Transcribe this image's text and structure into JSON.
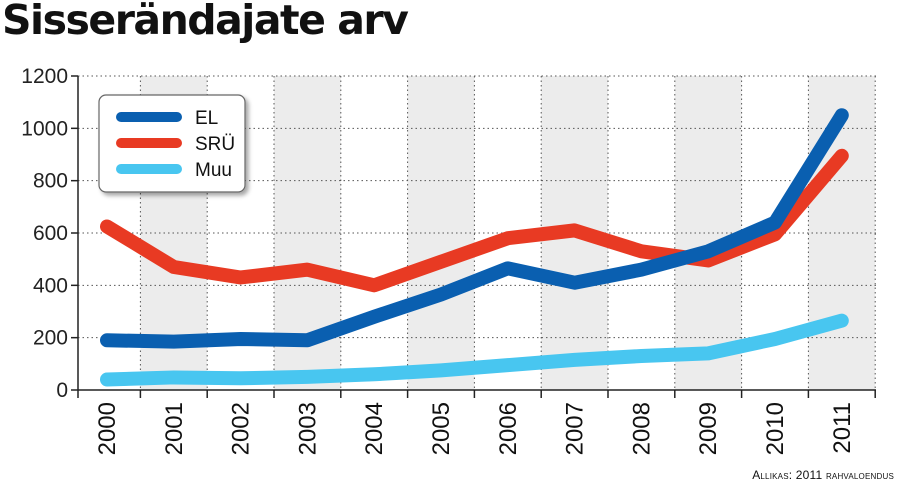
{
  "chart_data": {
    "type": "line",
    "title": "Sisserändajate arv",
    "xlabel": "",
    "ylabel": "",
    "categories": [
      "2000",
      "2001",
      "2002",
      "2003",
      "2004",
      "2005",
      "2006",
      "2007",
      "2008",
      "2009",
      "2010",
      "2011"
    ],
    "ylim": [
      0,
      1200
    ],
    "yticks": [
      0,
      200,
      400,
      600,
      800,
      1000,
      1200
    ],
    "series": [
      {
        "name": "EL",
        "color": "#0a5fb0",
        "values": [
          190,
          185,
          195,
          190,
          280,
          365,
          465,
          410,
          460,
          530,
          640,
          1050
        ]
      },
      {
        "name": "SRÜ",
        "color": "#e83a23",
        "values": [
          625,
          470,
          430,
          460,
          400,
          490,
          580,
          610,
          530,
          495,
          595,
          895
        ]
      },
      {
        "name": "Muu",
        "color": "#48c6f0",
        "values": [
          40,
          48,
          45,
          50,
          60,
          75,
          95,
          115,
          130,
          140,
          195,
          265
        ]
      }
    ],
    "grid": true,
    "legend": "top-left",
    "source": "Allikas: 2011 rahvaloendus"
  }
}
